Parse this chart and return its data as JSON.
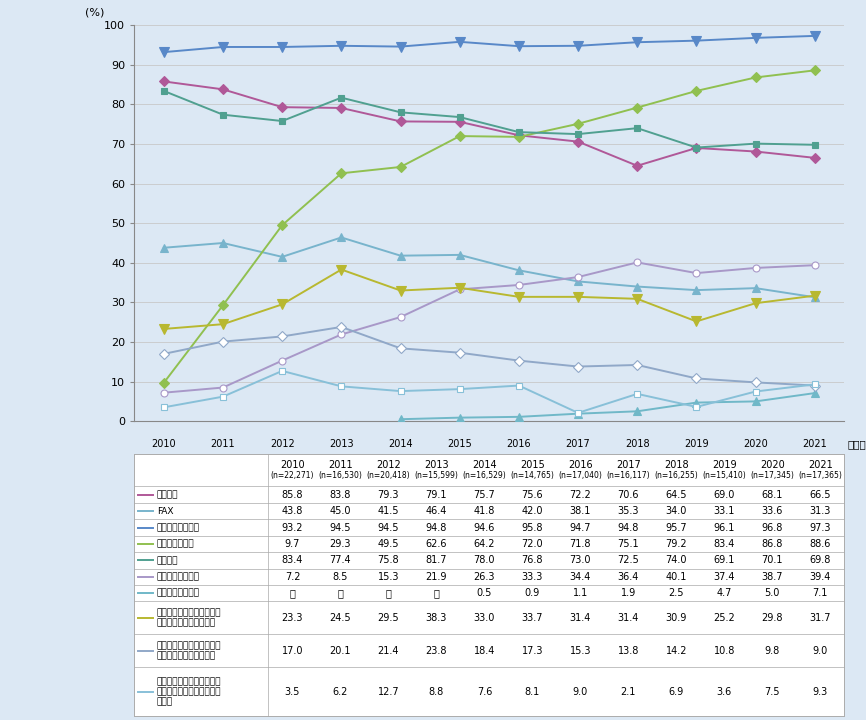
{
  "years": [
    2010,
    2011,
    2012,
    2013,
    2014,
    2015,
    2016,
    2017,
    2018,
    2019,
    2020,
    2021
  ],
  "year_display": [
    "2010",
    "2011",
    "2012",
    "2013",
    "2014",
    "2015",
    "2016",
    "2017",
    "2018",
    "2019",
    "2020",
    "2021"
  ],
  "n_labels": [
    "(n=22,271)",
    "(n=16,530)",
    "(n=20,418)",
    "(n=15,599)",
    "(n=16,529)",
    "(n=14,765)",
    "(n=17,040)",
    "(n=16,117)",
    "(n=16,255)",
    "(n=15,410)",
    "(n=17,345)",
    "(n=17,365)"
  ],
  "series": [
    {
      "name": "固定電話",
      "table_name": "固定電話",
      "values": [
        85.8,
        83.8,
        79.3,
        79.1,
        75.7,
        75.6,
        72.2,
        70.6,
        64.5,
        69.0,
        68.1,
        66.5
      ],
      "color": "#b05898",
      "marker": "D",
      "markersize": 5,
      "markerfacecolor": "#b05898",
      "linestyle": "-"
    },
    {
      "name": "FAX",
      "table_name": "FAX",
      "values": [
        43.8,
        45.0,
        41.5,
        46.4,
        41.8,
        42.0,
        38.1,
        35.3,
        34.0,
        33.1,
        33.6,
        31.3
      ],
      "color": "#78b4cc",
      "marker": "^",
      "markersize": 6,
      "markerfacecolor": "#78b4cc",
      "linestyle": "-"
    },
    {
      "name": "モバイル端末全体",
      "table_name": "モバイル端末全体",
      "values": [
        93.2,
        94.5,
        94.5,
        94.8,
        94.6,
        95.8,
        94.7,
        94.8,
        95.7,
        96.1,
        96.8,
        97.3
      ],
      "color": "#5888c8",
      "marker": "v",
      "markersize": 7,
      "markerfacecolor": "#5888c8",
      "linestyle": "-"
    },
    {
      "name": "スマートフォン",
      "table_name": "スマートフォン",
      "values": [
        9.7,
        29.3,
        49.5,
        62.6,
        64.2,
        72.0,
        71.8,
        75.1,
        79.2,
        83.4,
        86.8,
        88.6
      ],
      "color": "#90c050",
      "marker": "D",
      "markersize": 5,
      "markerfacecolor": "#90c050",
      "linestyle": "-"
    },
    {
      "name": "パソコン",
      "table_name": "パソコン",
      "values": [
        83.4,
        77.4,
        75.8,
        81.7,
        78.0,
        76.8,
        73.0,
        72.5,
        74.0,
        69.1,
        70.1,
        69.8
      ],
      "color": "#50a090",
      "marker": "s",
      "markersize": 5,
      "markerfacecolor": "#50a090",
      "linestyle": "-"
    },
    {
      "name": "タブレット型端末",
      "table_name": "タブレット型端末",
      "values": [
        7.2,
        8.5,
        15.3,
        21.9,
        26.3,
        33.3,
        34.4,
        36.4,
        40.1,
        37.4,
        38.7,
        39.4
      ],
      "color": "#a898c8",
      "marker": "o",
      "markersize": 5,
      "markerfacecolor": "white",
      "markeredgecolor": "#a898c8",
      "linestyle": "-"
    },
    {
      "name": "ウェアラブル端末",
      "table_name": "ウェアラブル端末",
      "values": [
        null,
        null,
        null,
        null,
        0.5,
        0.9,
        1.1,
        1.9,
        2.5,
        4.7,
        5.0,
        7.1
      ],
      "color": "#70b8c8",
      "marker": "^",
      "markersize": 6,
      "markerfacecolor": "#70b8c8",
      "linestyle": "-"
    },
    {
      "name": "インターネットに接続できる家庭用テレビゲーム機",
      "table_name": "インターネットに接続でき\nる家庭用テレビゲーム機",
      "values": [
        23.3,
        24.5,
        29.5,
        38.3,
        33.0,
        33.7,
        31.4,
        31.4,
        30.9,
        25.2,
        29.8,
        31.7
      ],
      "color": "#b8b830",
      "marker": "v",
      "markersize": 7,
      "markerfacecolor": "#b8b830",
      "linestyle": "-"
    },
    {
      "name": "インターネットに接続できる携帯型音楽プレイヤー",
      "table_name": "インターネットに接続でき\nる携帯型音楽プレイヤー",
      "values": [
        17.0,
        20.1,
        21.4,
        23.8,
        18.4,
        17.3,
        15.3,
        13.8,
        14.2,
        10.8,
        9.8,
        9.0
      ],
      "color": "#90a8c8",
      "marker": "D",
      "markersize": 5,
      "markerfacecolor": "white",
      "markeredgecolor": "#90a8c8",
      "linestyle": "-"
    },
    {
      "name": "その他インターネットに接続できる家電（スマート家電）等",
      "table_name": "その他インターネットに接\n続できる家電（スマート家\n電）等",
      "values": [
        3.5,
        6.2,
        12.7,
        8.8,
        7.6,
        8.1,
        9.0,
        2.1,
        6.9,
        3.6,
        7.5,
        9.3
      ],
      "color": "#88c0d8",
      "marker": "s",
      "markersize": 5,
      "markerfacecolor": "white",
      "markeredgecolor": "#88c0d8",
      "linestyle": "-"
    }
  ],
  "ylim": [
    0,
    100
  ],
  "yticks": [
    0,
    10,
    20,
    30,
    40,
    50,
    60,
    70,
    80,
    90,
    100
  ],
  "bg_color": "#dce8f4",
  "grid_color": "#c8c8c8",
  "table_line_color": "#aaaaaa",
  "pct_label": "(%)",
  "nen_label": "（年）"
}
